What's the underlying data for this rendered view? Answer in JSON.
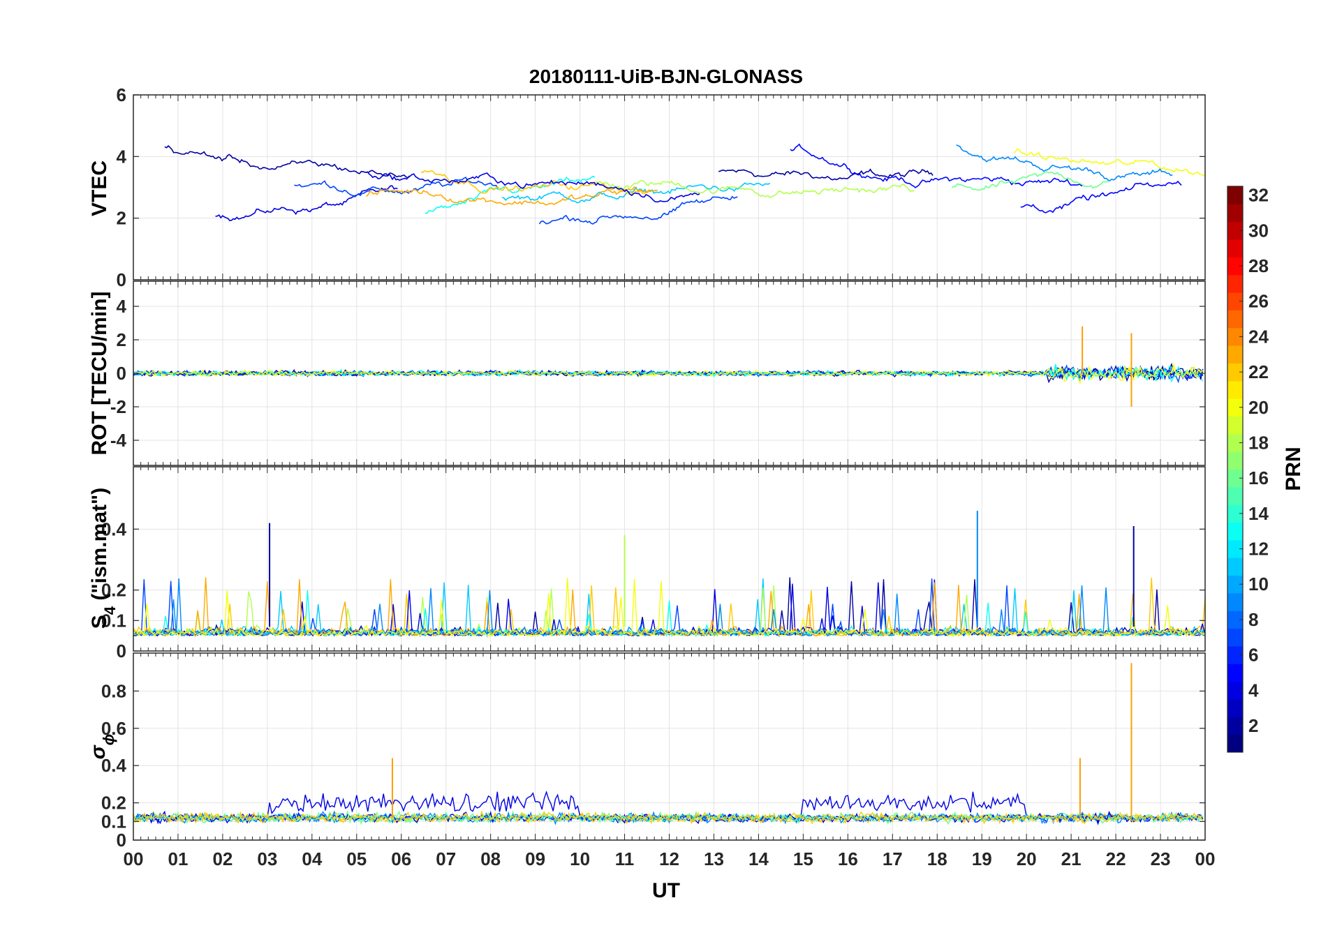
{
  "chart_data": {
    "type": "line",
    "title": "20180111-UiB-BJN-GLONASS",
    "xlabel": "UT",
    "x_tick_labels": [
      "00",
      "01",
      "02",
      "03",
      "04",
      "05",
      "06",
      "07",
      "08",
      "09",
      "10",
      "11",
      "12",
      "13",
      "14",
      "15",
      "16",
      "17",
      "18",
      "19",
      "20",
      "21",
      "22",
      "23",
      "00"
    ],
    "xlim_hours": [
      0,
      24
    ],
    "grid": true,
    "colorbar": {
      "label": "PRN",
      "range": [
        1,
        32
      ],
      "ticks": [
        "2",
        "4",
        "6",
        "8",
        "10",
        "12",
        "14",
        "16",
        "18",
        "20",
        "22",
        "24",
        "26",
        "28",
        "30",
        "32"
      ],
      "colormap": "jet"
    },
    "panels": [
      {
        "id": "vtec",
        "ylabel": "VTEC",
        "ylim": [
          0,
          6
        ],
        "yticks": [
          "0",
          "2",
          "4",
          "6"
        ],
        "typical_range": [
          1,
          5.5
        ]
      },
      {
        "id": "rot",
        "ylabel": "ROT [TECU/min]",
        "ylim": [
          -5.5,
          5.5
        ],
        "yticks": [
          "-4",
          "-2",
          "0",
          "2",
          "4"
        ],
        "peaks": [
          {
            "hour": 21.25,
            "value": 2.8
          },
          {
            "hour": 22.35,
            "value": 2.4
          },
          {
            "hour": 22.35,
            "value": -2.0
          }
        ]
      },
      {
        "id": "s4",
        "ylabel_main": "S",
        "ylabel_sub": "4",
        "ylabel_rest": " (\"ism.mat\")",
        "ylim": [
          0,
          0.6
        ],
        "yticks": [
          "0",
          "0.1",
          "0.2",
          "0.4"
        ],
        "peaks": [
          {
            "hour": 3.05,
            "value": 0.42
          },
          {
            "hour": 18.9,
            "value": 0.46
          },
          {
            "hour": 11.0,
            "value": 0.38
          },
          {
            "hour": 22.4,
            "value": 0.41
          }
        ]
      },
      {
        "id": "sigma_phi",
        "ylabel_main": "σ",
        "ylabel_sub": "ϕ",
        "ylim": [
          0,
          1.0
        ],
        "yticks": [
          "0",
          "0.1",
          "0.2",
          "0.4",
          "0.6",
          "0.8"
        ],
        "peaks": [
          {
            "hour": 22.35,
            "value": 0.95
          },
          {
            "hour": 21.2,
            "value": 0.44
          },
          {
            "hour": 5.8,
            "value": 0.44
          }
        ]
      }
    ]
  }
}
